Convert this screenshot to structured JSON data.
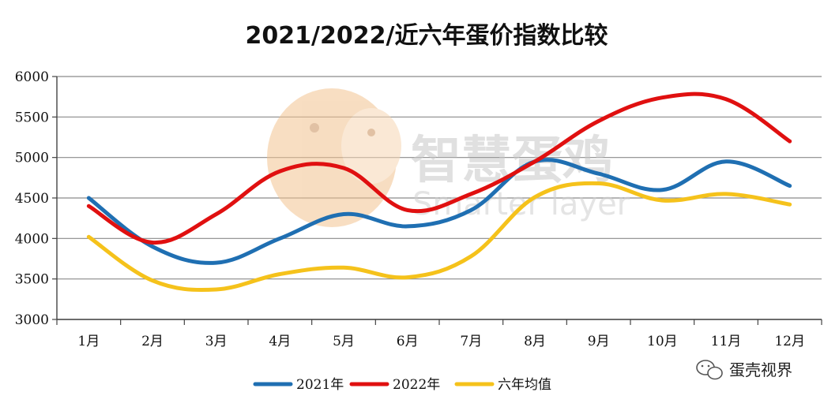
{
  "chart_data": {
    "type": "line",
    "title": "2021/2022/近六年蛋价指数比较",
    "categories": [
      "1月",
      "2月",
      "3月",
      "4月",
      "5月",
      "6月",
      "7月",
      "8月",
      "9月",
      "10月",
      "11月",
      "12月"
    ],
    "ylim": [
      3000,
      6000
    ],
    "yticks": [
      "3000",
      "3500",
      "4000",
      "4500",
      "5000",
      "5500",
      "6000"
    ],
    "grid": true,
    "legend_position": "bottom",
    "series": [
      {
        "name": "2021年",
        "color": "#1f6fb2",
        "values": [
          4500,
          3900,
          3700,
          4000,
          4300,
          4150,
          4350,
          4950,
          4800,
          4600,
          4950,
          4650
        ]
      },
      {
        "name": "2022年",
        "color": "#e01010",
        "values": [
          4400,
          3950,
          4300,
          4830,
          4870,
          4350,
          4550,
          4950,
          5450,
          5740,
          5720,
          5200
        ]
      },
      {
        "name": "六年均值",
        "color": "#f5c21b",
        "values": [
          4020,
          3480,
          3370,
          3560,
          3640,
          3520,
          3780,
          4510,
          4680,
          4470,
          4550,
          4420
        ]
      }
    ]
  },
  "watermark": {
    "main": "智慧蛋鸡",
    "sub": "Smarter layer"
  },
  "source_mark": {
    "label": "蛋壳视界"
  }
}
